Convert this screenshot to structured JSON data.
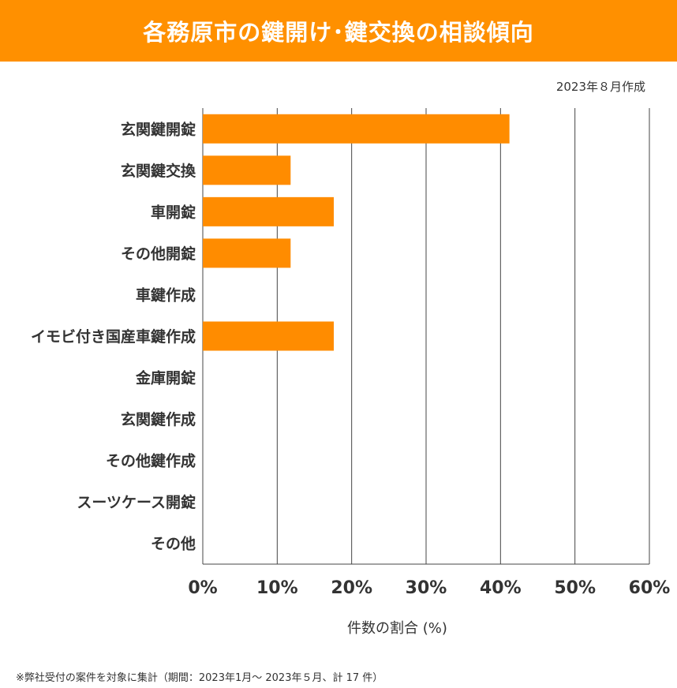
{
  "header": {
    "title": "各務原市の鍵開け･鍵交換の相談傾向",
    "date": "2023年８月作成"
  },
  "footnote": "※弊社受付の案件を対象に集計（期間：2023年1月～ 2023年５月、計 17 件）",
  "colors": {
    "accent": "#FF9000",
    "bar": "#FF8C00",
    "grid": "#333333"
  },
  "chart_data": {
    "type": "bar",
    "orientation": "horizontal",
    "categories": [
      "玄関鍵開錠",
      "玄関鍵交換",
      "車開錠",
      "その他開錠",
      "車鍵作成",
      "イモビ付き国産車鍵作成",
      "金庫開錠",
      "玄関鍵作成",
      "その他鍵作成",
      "スーツケース開錠",
      "その他"
    ],
    "values": [
      41.2,
      11.8,
      17.6,
      11.8,
      0,
      17.6,
      0,
      0,
      0,
      0,
      0
    ],
    "xlabel": "件数の割合 (%)",
    "xlim": [
      0,
      60
    ],
    "xticks": [
      "0%",
      "10%",
      "20%",
      "30%",
      "40%",
      "50%",
      "60%"
    ],
    "grid": "vertical"
  }
}
